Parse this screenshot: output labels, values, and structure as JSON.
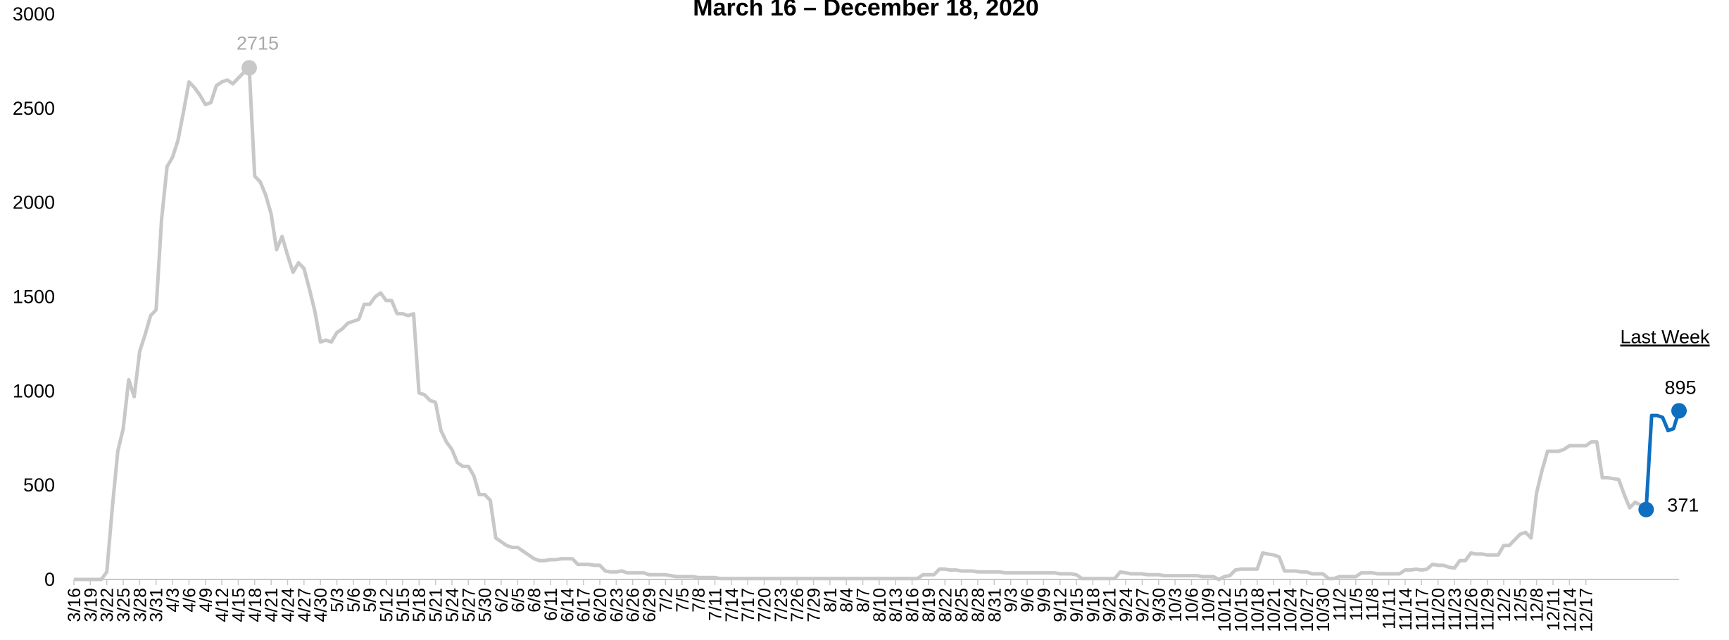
{
  "chart_data": {
    "type": "line",
    "title": "March 16 – December 18, 2020",
    "xlabel": "",
    "ylabel": "",
    "ylim": [
      0,
      3000
    ],
    "yticks": [
      0,
      500,
      1000,
      1500,
      2000,
      2500,
      3000
    ],
    "grid": false,
    "legend": "none",
    "x_tick_labels": [
      "3/16",
      "3/19",
      "3/22",
      "3/25",
      "3/28",
      "3/31",
      "4/3",
      "4/6",
      "4/9",
      "4/12",
      "4/15",
      "4/18",
      "4/21",
      "4/24",
      "4/27",
      "4/30",
      "5/3",
      "5/6",
      "5/9",
      "5/12",
      "5/15",
      "5/18",
      "5/21",
      "5/24",
      "5/27",
      "5/30",
      "6/2",
      "6/5",
      "6/8",
      "6/11",
      "6/14",
      "6/17",
      "6/20",
      "6/23",
      "6/26",
      "6/29",
      "7/2",
      "7/5",
      "7/8",
      "7/11",
      "7/14",
      "7/17",
      "7/20",
      "7/23",
      "7/26",
      "7/29",
      "8/1",
      "8/4",
      "8/7",
      "8/10",
      "8/13",
      "8/16",
      "8/19",
      "8/22",
      "8/25",
      "8/28",
      "8/31",
      "9/3",
      "9/6",
      "9/9",
      "9/12",
      "9/15",
      "9/18",
      "9/21",
      "9/24",
      "9/27",
      "9/30",
      "10/3",
      "10/6",
      "10/9",
      "10/12",
      "10/15",
      "10/18",
      "10/21",
      "10/24",
      "10/27",
      "10/30",
      "11/2",
      "11/5",
      "11/8",
      "11/11",
      "11/14",
      "11/17",
      "11/20",
      "11/23",
      "11/26",
      "11/29",
      "12/2",
      "12/5",
      "12/8",
      "12/11",
      "12/14",
      "12/17"
    ],
    "series": [
      {
        "color": "#c8c8c8",
        "values": [
          0,
          0,
          0,
          0,
          0,
          0,
          40,
          380,
          680,
          800,
          1060,
          970,
          1210,
          1300,
          1400,
          1430,
          1910,
          2190,
          2240,
          2330,
          2480,
          2640,
          2610,
          2570,
          2520,
          2530,
          2620,
          2640,
          2650,
          2630,
          2660,
          2690,
          2715,
          2140,
          2110,
          2040,
          1940,
          1750,
          1820,
          1720,
          1630,
          1680,
          1650,
          1540,
          1420,
          1260,
          1270,
          1260,
          1310,
          1330,
          1360,
          1370,
          1380,
          1460,
          1460,
          1500,
          1520,
          1480,
          1480,
          1410,
          1410,
          1400,
          1410,
          990,
          980,
          950,
          940,
          790,
          730,
          690,
          620,
          600,
          600,
          550,
          450,
          450,
          420,
          220,
          200,
          180,
          170,
          170,
          150,
          130,
          110,
          100,
          100,
          105,
          105,
          110,
          110,
          110,
          80,
          80,
          80,
          75,
          75,
          45,
          40,
          40,
          45,
          35,
          35,
          35,
          35,
          25,
          25,
          25,
          25,
          20,
          15,
          15,
          15,
          15,
          10,
          10,
          10,
          10,
          5,
          5,
          5,
          5,
          5,
          5,
          5,
          5,
          5,
          5,
          5,
          5,
          5,
          5,
          5,
          5,
          5,
          5,
          5,
          5,
          5,
          5,
          5,
          5,
          5,
          5,
          5,
          5,
          5,
          5,
          5,
          5,
          5,
          5,
          5,
          5,
          5,
          25,
          25,
          25,
          55,
          55,
          50,
          50,
          45,
          45,
          45,
          40,
          40,
          40,
          40,
          40,
          35,
          35,
          35,
          35,
          35,
          35,
          35,
          35,
          35,
          35,
          30,
          30,
          30,
          25,
          5,
          5,
          5,
          5,
          5,
          5,
          5,
          40,
          35,
          30,
          30,
          30,
          25,
          25,
          25,
          20,
          20,
          20,
          20,
          20,
          20,
          20,
          15,
          15,
          15,
          0,
          15,
          20,
          50,
          55,
          55,
          55,
          55,
          140,
          135,
          130,
          120,
          45,
          45,
          45,
          40,
          40,
          30,
          30,
          30,
          5,
          5,
          15,
          15,
          15,
          15,
          35,
          35,
          35,
          30,
          30,
          30,
          30,
          30,
          50,
          50,
          55,
          50,
          55,
          80,
          75,
          75,
          65,
          60,
          100,
          100,
          140,
          135,
          135,
          130,
          130,
          130,
          180,
          180,
          210,
          240,
          250,
          220,
          460,
          580,
          680,
          680,
          680,
          690,
          710,
          710,
          710,
          710,
          730,
          730,
          540,
          540,
          535,
          530,
          450,
          380,
          410,
          395,
          371
        ]
      },
      {
        "color": "#0e6fc1",
        "values": [
          371,
          870,
          870,
          860,
          790,
          800,
          895
        ]
      }
    ],
    "annotations": {
      "peak_value": "2715",
      "week_start_value": "371",
      "week_end_value": "895",
      "last_week_label": "Last Week"
    }
  }
}
